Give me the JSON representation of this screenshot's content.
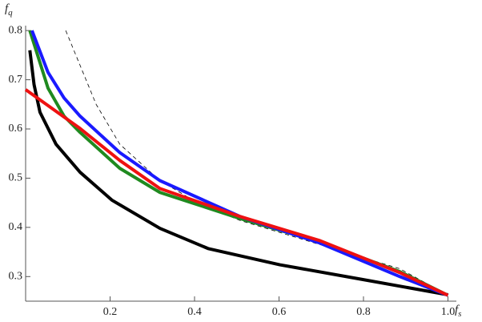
{
  "chart_data": {
    "type": "line",
    "xlabel": {
      "main": "f",
      "subscript": "s"
    },
    "ylabel": {
      "main": "f",
      "subscript": "q"
    },
    "xlim": [
      0,
      1.02
    ],
    "ylim": [
      0.25,
      0.81
    ],
    "xticks": [
      0.2,
      0.4,
      0.6,
      0.8,
      {
        "value": 1,
        "label": "1.0"
      }
    ],
    "yticks": [
      0.3,
      0.4,
      0.5,
      0.6,
      0.7,
      0.8
    ],
    "series": [
      {
        "color": "#000000",
        "width": 0.8,
        "dashed": true,
        "x": [
          0.095,
          0.167,
          0.223,
          0.318,
          0.413,
          0.508,
          0.697,
          0.886,
          1
        ],
        "values": [
          0.8,
          0.65,
          0.569,
          0.495,
          0.447,
          0.414,
          0.365,
          0.316,
          0.262
        ]
      },
      {
        "color": "#000000",
        "width": 4,
        "dashed": false,
        "x": [
          0.01,
          0.02,
          0.034,
          0.072,
          0.129,
          0.205,
          0.318,
          0.432,
          0.602,
          0.792,
          1
        ],
        "values": [
          0.76,
          0.69,
          0.634,
          0.569,
          0.512,
          0.455,
          0.398,
          0.357,
          0.324,
          0.295,
          0.263
        ]
      },
      {
        "color": "#1f8a1f",
        "width": 4,
        "dashed": false,
        "x": [
          0.01,
          0.053,
          0.091,
          0.129,
          0.223,
          0.318,
          0.508,
          0.697,
          0.886,
          1
        ],
        "values": [
          0.8,
          0.683,
          0.626,
          0.593,
          0.52,
          0.471,
          0.418,
          0.37,
          0.31,
          0.262
        ]
      },
      {
        "color": "#1a1aff",
        "width": 4,
        "dashed": false,
        "x": [
          0.015,
          0.053,
          0.091,
          0.129,
          0.223,
          0.318,
          0.508,
          0.697,
          0.886,
          1
        ],
        "values": [
          0.8,
          0.715,
          0.663,
          0.626,
          0.552,
          0.495,
          0.422,
          0.368,
          0.3,
          0.262
        ]
      },
      {
        "color": "#ee1111",
        "width": 4,
        "dashed": false,
        "x": [
          0,
          0.129,
          0.223,
          0.318,
          0.508,
          0.697,
          0.886,
          1
        ],
        "values": [
          0.68,
          0.601,
          0.536,
          0.479,
          0.422,
          0.373,
          0.308,
          0.262
        ]
      }
    ]
  }
}
